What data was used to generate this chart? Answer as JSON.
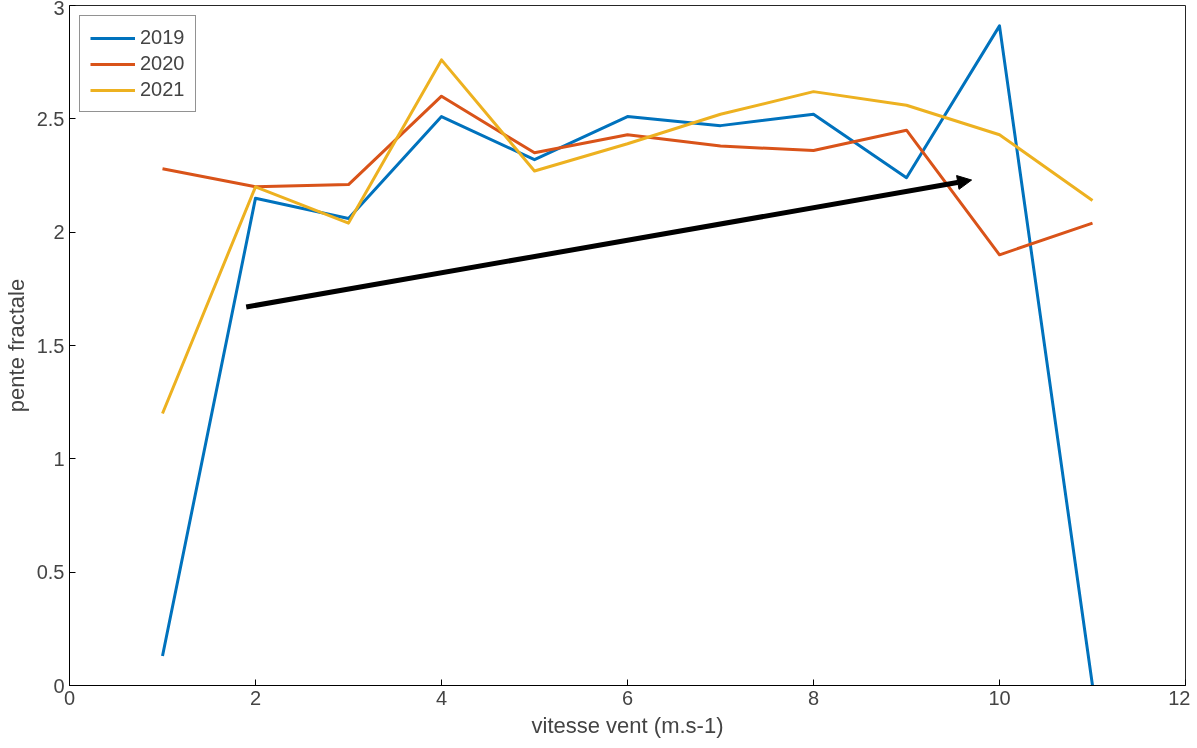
{
  "chart_data": {
    "type": "line",
    "xlabel": "vitesse vent (m.s-1)",
    "ylabel": "pente fractale",
    "x": [
      1,
      2,
      3,
      4,
      5,
      6,
      7,
      8,
      9,
      10,
      11
    ],
    "series": [
      {
        "name": "2019",
        "color": "#0072bd",
        "values": [
          0.13,
          2.15,
          2.06,
          2.51,
          2.32,
          2.51,
          2.47,
          2.52,
          2.24,
          2.91,
          0
        ]
      },
      {
        "name": "2020",
        "color": "#d95319",
        "values": [
          2.28,
          2.2,
          2.21,
          2.6,
          2.35,
          2.43,
          2.38,
          2.36,
          2.45,
          1.9,
          2.04
        ]
      },
      {
        "name": "2021",
        "color": "#edb120",
        "values": [
          1.2,
          2.2,
          2.04,
          2.76,
          2.27,
          2.39,
          2.52,
          2.62,
          2.56,
          2.43,
          2.14
        ]
      }
    ],
    "xlim": [
      0,
      12
    ],
    "xticks": [
      0,
      2,
      4,
      6,
      8,
      10,
      12
    ],
    "ylim": [
      0,
      3
    ],
    "yticks": [
      0,
      0.5,
      1,
      1.5,
      2,
      2.5,
      3
    ],
    "grid": false,
    "legend": "top left",
    "marker": "none",
    "line_style": "solid"
  }
}
